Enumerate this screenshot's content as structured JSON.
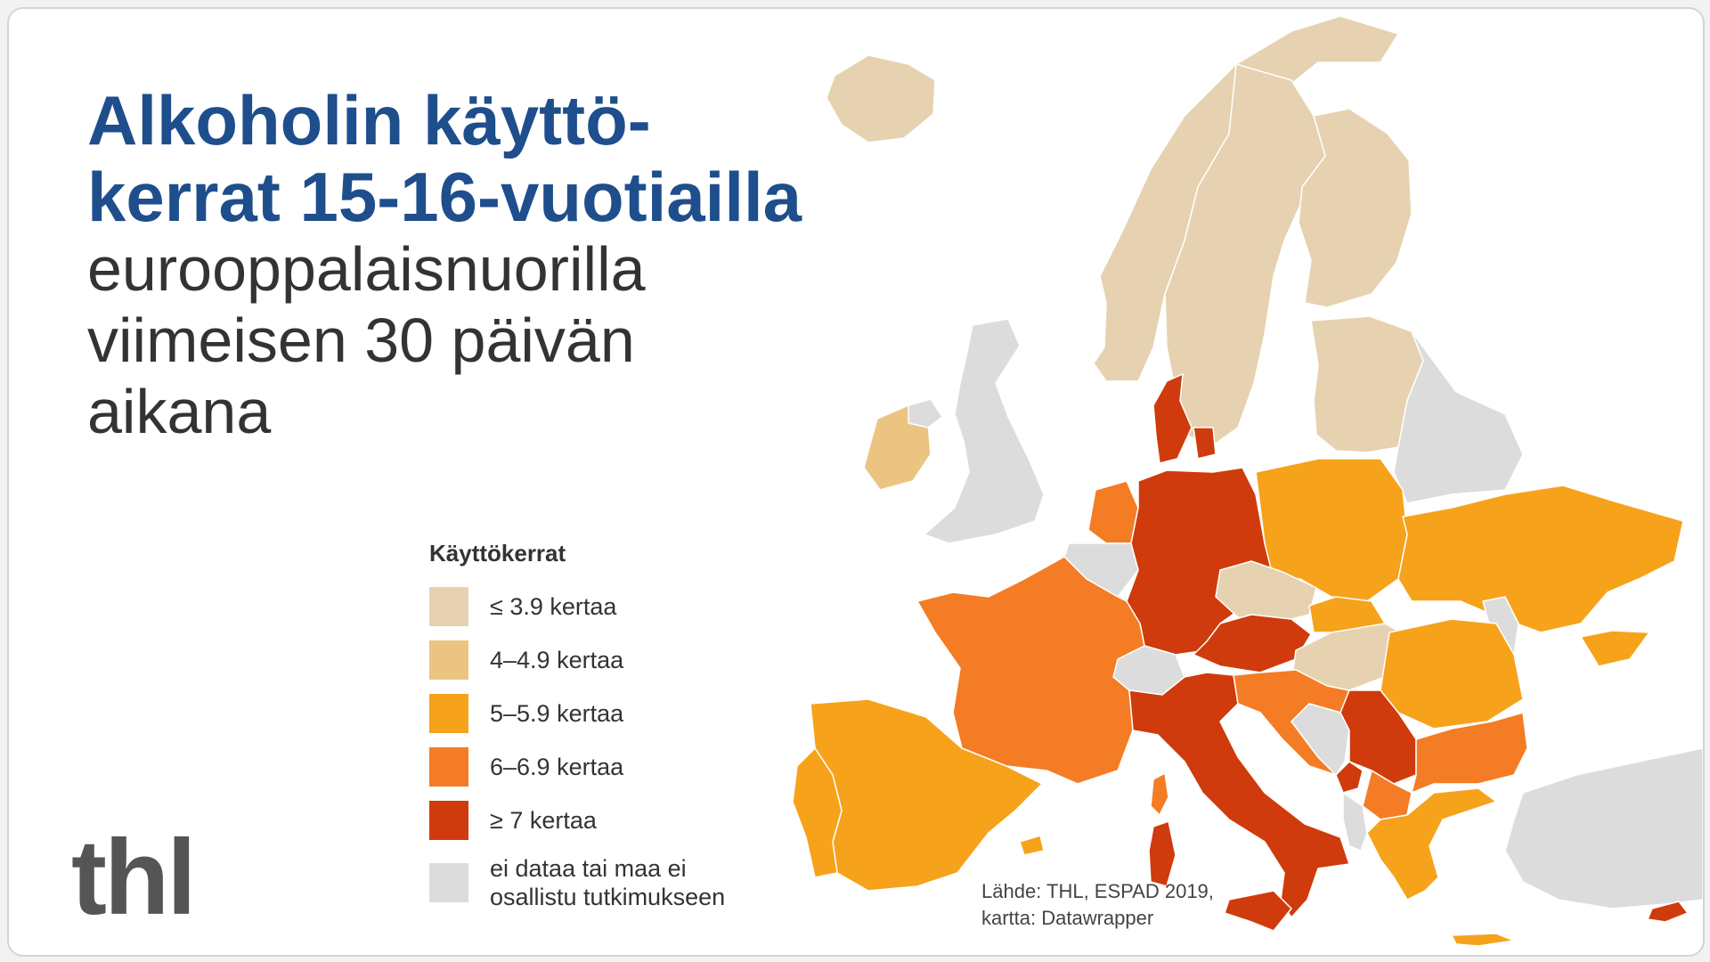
{
  "title": {
    "line1": "Alkoholin käyttö-",
    "line2": "kerrat 15-16-vuotiailla"
  },
  "subtitle": {
    "line1": "eurooppalaisnuorilla",
    "line2": "viimeisen 30 päivän",
    "line3": "aikana"
  },
  "legend": {
    "title": "Käyttökerrat",
    "items": [
      {
        "label": "≤ 3.9 kertaa",
        "color": "#e6d2b0"
      },
      {
        "label": "4–4.9 kertaa",
        "color": "#ecc482"
      },
      {
        "label": "5–5.9 kertaa",
        "color": "#f7a21b"
      },
      {
        "label": "6–6.9 kertaa",
        "color": "#f47c24"
      },
      {
        "label": "≥ 7 kertaa",
        "color": "#cf3b0c"
      },
      {
        "label": "ei dataa tai maa ei osallistu tutkimukseen",
        "color": "#dcdcdc"
      }
    ]
  },
  "source": {
    "line1": "Lähde: THL, ESPAD 2019,",
    "line2": "kartta: Datawrapper"
  },
  "logo": "thl",
  "colors": {
    "title": "#1e4e8c",
    "text": "#333333",
    "border": "#d4d4d4"
  }
}
